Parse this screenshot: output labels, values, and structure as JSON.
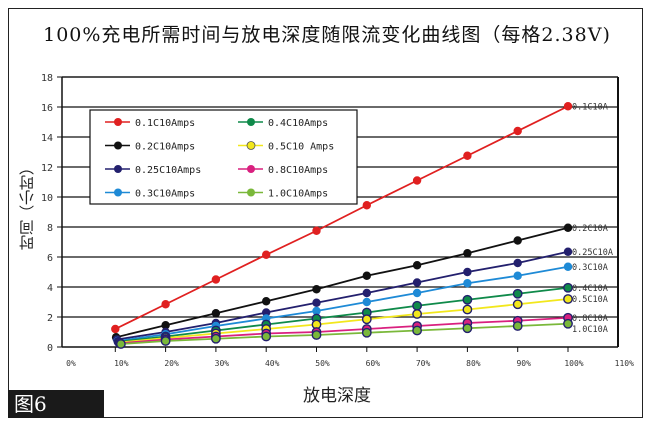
{
  "chart_data": {
    "type": "line",
    "title": "100%充电所需时间与放电深度随限流变化曲线图（每格2.38V)",
    "xlabel": "放电深度",
    "ylabel": "时间（小时）",
    "x_ticks": [
      "0%",
      "10%",
      "20%",
      "30%",
      "40%",
      "50%",
      "60%",
      "70%",
      "80%",
      "90%",
      "100%",
      "110%"
    ],
    "y_ticks": [
      0,
      2,
      4,
      6,
      8,
      10,
      12,
      14,
      16,
      18
    ],
    "xlim": [
      0,
      110
    ],
    "ylim": [
      0,
      18
    ],
    "grid": "horizontal",
    "legend_placement": "top-left",
    "x": [
      10,
      20,
      30,
      40,
      50,
      60,
      70,
      80,
      90,
      100
    ],
    "series": [
      {
        "name": "0.1C10Amps",
        "end_label": "0.1C10A",
        "color": "#e02020",
        "values": [
          1.2,
          2.85,
          4.5,
          6.15,
          7.75,
          9.45,
          11.1,
          12.75,
          14.4,
          16.05
        ]
      },
      {
        "name": "0.2C10Amps",
        "end_label": "0.2C10A",
        "color": "#111111",
        "values": [
          0.65,
          1.45,
          2.25,
          3.05,
          3.85,
          4.75,
          5.45,
          6.25,
          7.1,
          7.95
        ]
      },
      {
        "name": "0.25C10Amps",
        "end_label": "0.25C10A",
        "color": "#23206e",
        "values": [
          0.5,
          1.0,
          1.6,
          2.3,
          2.95,
          3.6,
          4.3,
          5.0,
          5.6,
          6.35
        ]
      },
      {
        "name": "0.3C10Amps",
        "end_label": "0.3C10A",
        "color": "#1e8ad6",
        "values": [
          0.4,
          0.85,
          1.4,
          1.9,
          2.4,
          3.0,
          3.6,
          4.25,
          4.75,
          5.35
        ]
      },
      {
        "name": "0.4C10Amps",
        "end_label": "0.4C10A",
        "color": "#0f8a4a",
        "values": [
          0.35,
          0.7,
          1.1,
          1.5,
          1.9,
          2.3,
          2.75,
          3.15,
          3.55,
          3.95
        ]
      },
      {
        "name": "0.5C10 Amps",
        "end_label": "0.5C10A",
        "color": "#f2e71c",
        "values": [
          0.3,
          0.6,
          0.9,
          1.2,
          1.5,
          1.85,
          2.2,
          2.5,
          2.85,
          3.2
        ]
      },
      {
        "name": "0.8C10Amps",
        "end_label": "0.8C10A",
        "color": "#d9207f",
        "values": [
          0.25,
          0.5,
          0.7,
          0.9,
          1.0,
          1.2,
          1.4,
          1.6,
          1.75,
          1.95
        ]
      },
      {
        "name": "1.0C10Amps",
        "end_label": "1.0C10A",
        "color": "#7ab83a",
        "values": [
          0.2,
          0.4,
          0.55,
          0.7,
          0.8,
          0.95,
          1.1,
          1.25,
          1.4,
          1.55
        ]
      }
    ]
  },
  "figure_label": "图6"
}
